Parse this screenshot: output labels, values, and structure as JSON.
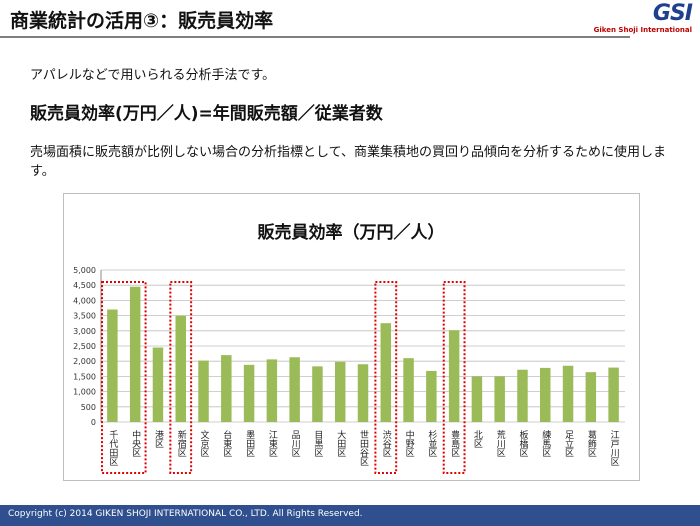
{
  "header": {
    "title": "商業統計の活用③：販売員効率",
    "logo": "GSI",
    "logo_sub": "Giken Shoji International"
  },
  "intro": "アパレルなどで用いられる分析手法です。",
  "formula": "販売員効率(万円／人)=年間販売額／従業者数",
  "description": "売場面積に販売額が比例しない場合の分析指標として、商業集積地の買回り品傾向を分析するために使用します。",
  "chart_data": {
    "type": "bar",
    "title": "販売員効率（万円／人）",
    "categories": [
      "千代田区",
      "中央区",
      "港区",
      "新宿区",
      "文京区",
      "台東区",
      "墨田区",
      "江東区",
      "品川区",
      "目黒区",
      "大田区",
      "世田谷区",
      "渋谷区",
      "中野区",
      "杉並区",
      "豊島区",
      "北区",
      "荒川区",
      "板橋区",
      "練馬区",
      "足立区",
      "葛飾区",
      "江戸川区"
    ],
    "values": [
      3700,
      4450,
      2450,
      3500,
      2020,
      2200,
      1880,
      2060,
      2130,
      1830,
      1980,
      1900,
      3250,
      2100,
      1680,
      3020,
      1500,
      1500,
      1720,
      1780,
      1850,
      1640,
      1790
    ],
    "color": "#9bbb59",
    "ylim": [
      0,
      5000
    ],
    "yticks": [
      0,
      {
        "value": 500,
        "label": "500"
      },
      {
        "value": 1000,
        "label": "1,000"
      },
      {
        "value": 1500,
        "label": "1,500"
      },
      {
        "value": 2000,
        "label": "2,000"
      },
      {
        "value": 2500,
        "label": "2,500"
      },
      {
        "value": 3000,
        "label": "3,000"
      },
      {
        "value": 3500,
        "label": "3,500"
      },
      {
        "value": 4000,
        "label": "4,000"
      },
      {
        "value": 4500,
        "label": "4,500"
      },
      {
        "value": 5000,
        "label": "5,000"
      }
    ],
    "grid": true,
    "highlight": [
      [
        0,
        1
      ],
      [
        3
      ],
      [
        12
      ],
      [
        15
      ]
    ],
    "highlight_color": "#e00000"
  },
  "footer": "Copyright (c) 2014 GIKEN SHOJI INTERNATIONAL CO., LTD. All Rights Reserved."
}
